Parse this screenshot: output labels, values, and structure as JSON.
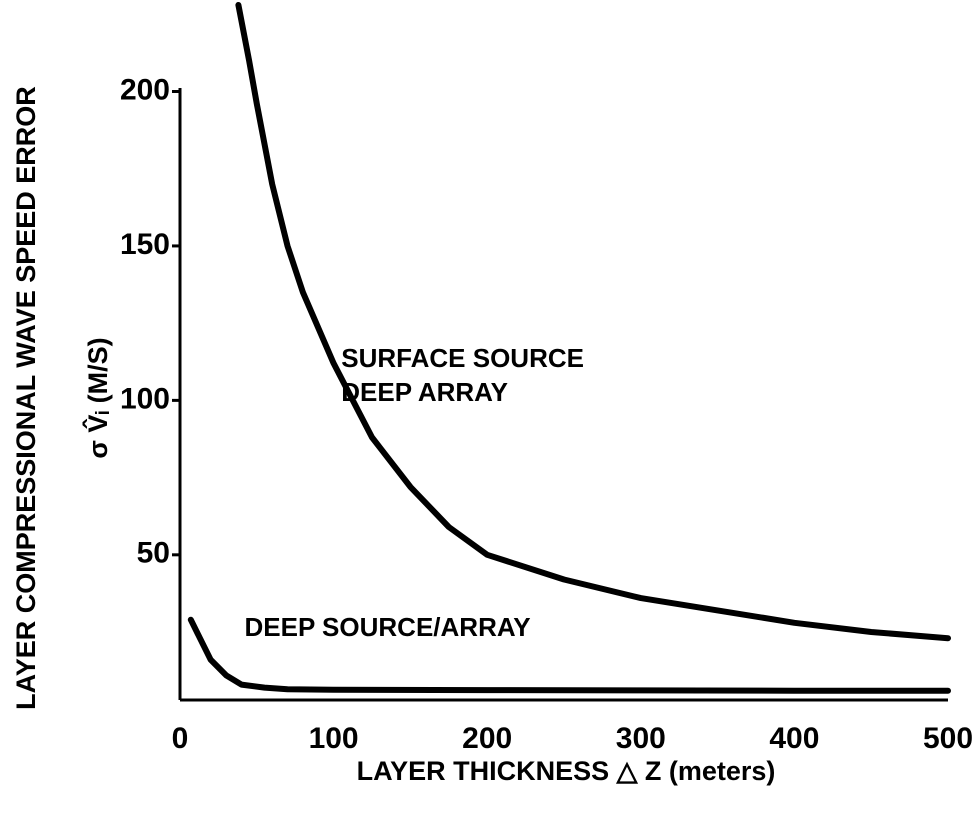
{
  "chart_data": {
    "type": "line",
    "x_label": "LAYER THICKNESS △ Z (meters)",
    "y_label": [
      "LAYER COMPRESSIONAL WAVE SPEED ERROR",
      "σ V̂ᵢ (M/S)"
    ],
    "xlim": [
      0,
      500
    ],
    "ylim": [
      3,
      228
    ],
    "xticks": [
      0,
      100,
      200,
      300,
      400,
      500
    ],
    "yticks": [
      50,
      100,
      150,
      200
    ],
    "grid": false,
    "series": [
      {
        "color": "#000000",
        "x": [
          38,
          45,
          50,
          60,
          70,
          80,
          100,
          125,
          150,
          175,
          200,
          250,
          300,
          350,
          400,
          450,
          500
        ],
        "values": [
          228,
          210,
          196,
          170,
          150,
          135,
          112,
          88,
          72,
          59,
          50,
          42,
          36,
          32,
          28,
          25,
          23
        ]
      },
      {
        "color": "#000000",
        "x": [
          7,
          12,
          20,
          30,
          40,
          55,
          70,
          100,
          200,
          300,
          400,
          500
        ],
        "values": [
          29,
          24,
          16,
          11,
          8,
          7,
          6.5,
          6.3,
          6.2,
          6.1,
          6,
          6
        ]
      }
    ],
    "annotations": [
      {
        "text": "SURFACE SOURCE",
        "x": 105,
        "y": 113
      },
      {
        "text": "DEEP ARRAY",
        "x": 105,
        "y": 102
      },
      {
        "text": "DEEP SOURCE/ARRAY",
        "x": 42,
        "y": 26
      }
    ]
  }
}
